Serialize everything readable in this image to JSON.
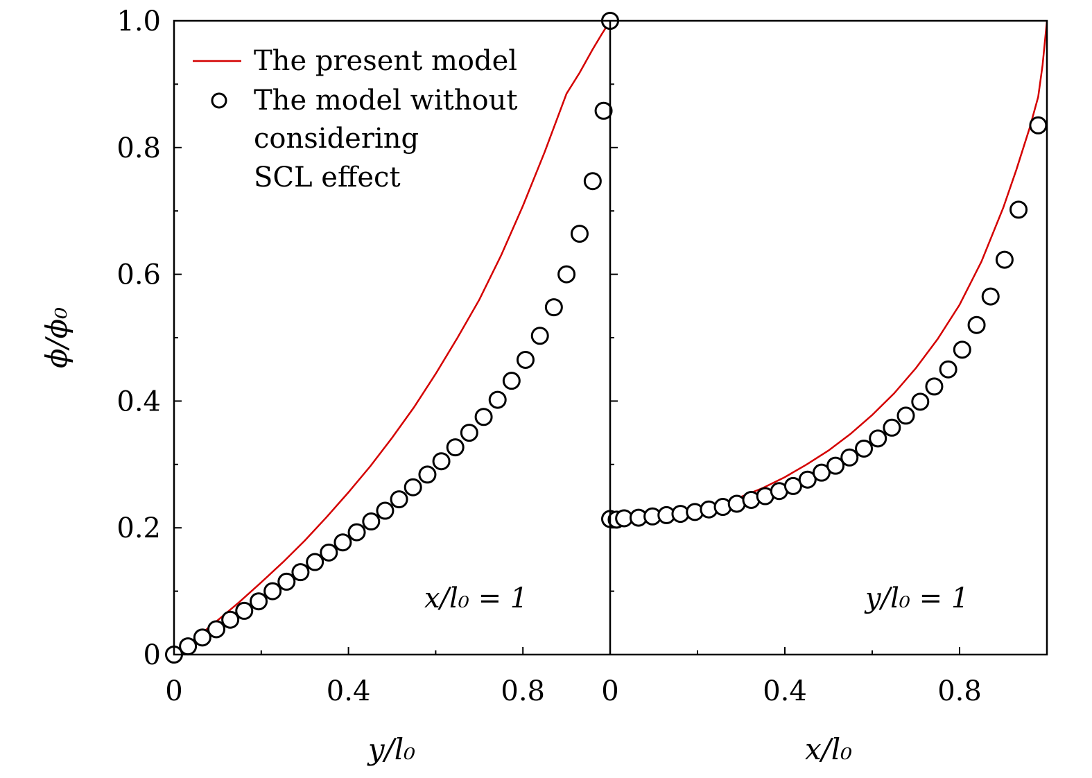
{
  "colors": {
    "model_line": "#d40000",
    "marker_stroke": "#000000",
    "axes": "#000000"
  },
  "legend": {
    "line_label": "The present model",
    "marker_label_lines": [
      "The model without",
      "considering",
      "SCL effect"
    ]
  },
  "y_axis": {
    "label": "ϕ/ϕ₀",
    "ticks": [
      0,
      0.2,
      0.4,
      0.6,
      0.8,
      1.0
    ],
    "tick_labels": [
      "0",
      "0.2",
      "0.4",
      "0.6",
      "0.8",
      "1.0"
    ]
  },
  "chart_data": [
    {
      "type": "line",
      "xlabel": "y/l₀",
      "ylabel": "ϕ/ϕ₀",
      "annotation": "x/l₀ = 1",
      "xlim": [
        0,
        1.0
      ],
      "ylim": [
        0,
        1.0
      ],
      "x_ticks": [
        0,
        0.4,
        0.8
      ],
      "x_tick_labels": [
        "0",
        "0.4",
        "0.8"
      ],
      "series": [
        {
          "name": "The present model",
          "style": "line",
          "x": [
            0,
            0.05,
            0.1,
            0.15,
            0.2,
            0.25,
            0.3,
            0.35,
            0.4,
            0.45,
            0.5,
            0.55,
            0.6,
            0.65,
            0.7,
            0.75,
            0.8,
            0.85,
            0.9,
            0.93,
            0.96,
            0.98,
            1.0
          ],
          "y": [
            0,
            0.026,
            0.054,
            0.083,
            0.114,
            0.146,
            0.18,
            0.217,
            0.256,
            0.297,
            0.342,
            0.39,
            0.443,
            0.5,
            0.56,
            0.63,
            0.708,
            0.793,
            0.885,
            0.918,
            0.955,
            0.978,
            1.0
          ]
        },
        {
          "name": "The model without considering SCL effect",
          "style": "marker",
          "x": [
            0,
            0.032,
            0.065,
            0.097,
            0.129,
            0.161,
            0.194,
            0.226,
            0.258,
            0.29,
            0.323,
            0.355,
            0.387,
            0.419,
            0.452,
            0.484,
            0.516,
            0.548,
            0.581,
            0.613,
            0.645,
            0.677,
            0.71,
            0.742,
            0.774,
            0.806,
            0.839,
            0.871,
            0.9,
            0.93,
            0.96,
            0.985,
            1.0
          ],
          "y": [
            0,
            0.013,
            0.027,
            0.04,
            0.055,
            0.069,
            0.084,
            0.1,
            0.115,
            0.13,
            0.146,
            0.161,
            0.177,
            0.193,
            0.21,
            0.227,
            0.245,
            0.264,
            0.284,
            0.305,
            0.327,
            0.35,
            0.375,
            0.402,
            0.432,
            0.465,
            0.503,
            0.548,
            0.6,
            0.664,
            0.747,
            0.858,
            1.0
          ]
        }
      ]
    },
    {
      "type": "line",
      "xlabel": "x/l₀",
      "ylabel": "ϕ/ϕ₀",
      "annotation": "y/l₀ = 1",
      "xlim": [
        0,
        1.0
      ],
      "ylim": [
        0,
        1.0
      ],
      "x_ticks": [
        0,
        0.4,
        0.8
      ],
      "x_tick_labels": [
        "0",
        "0.4",
        "0.8"
      ],
      "series": [
        {
          "name": "The present model",
          "style": "line",
          "x": [
            0,
            0.05,
            0.1,
            0.15,
            0.2,
            0.25,
            0.3,
            0.35,
            0.4,
            0.45,
            0.5,
            0.55,
            0.6,
            0.65,
            0.7,
            0.75,
            0.8,
            0.85,
            0.9,
            0.93,
            0.96,
            0.98,
            0.99,
            1.0
          ],
          "y": [
            0.205,
            0.208,
            0.213,
            0.219,
            0.227,
            0.237,
            0.249,
            0.263,
            0.28,
            0.3,
            0.322,
            0.348,
            0.378,
            0.412,
            0.452,
            0.498,
            0.552,
            0.62,
            0.705,
            0.765,
            0.83,
            0.88,
            0.93,
            1.0
          ]
        },
        {
          "name": "The model without considering SCL effect",
          "style": "marker",
          "x": [
            0,
            0.015,
            0.032,
            0.065,
            0.097,
            0.129,
            0.161,
            0.194,
            0.226,
            0.258,
            0.29,
            0.323,
            0.355,
            0.387,
            0.419,
            0.452,
            0.484,
            0.516,
            0.548,
            0.581,
            0.613,
            0.645,
            0.677,
            0.71,
            0.742,
            0.774,
            0.806,
            0.839,
            0.871,
            0.903,
            0.935,
            0.98
          ],
          "y": [
            0.214,
            0.213,
            0.215,
            0.216,
            0.218,
            0.22,
            0.222,
            0.225,
            0.229,
            0.233,
            0.238,
            0.244,
            0.25,
            0.258,
            0.266,
            0.276,
            0.287,
            0.298,
            0.311,
            0.325,
            0.341,
            0.358,
            0.377,
            0.399,
            0.423,
            0.45,
            0.481,
            0.52,
            0.565,
            0.623,
            0.702,
            0.835
          ]
        }
      ]
    }
  ]
}
